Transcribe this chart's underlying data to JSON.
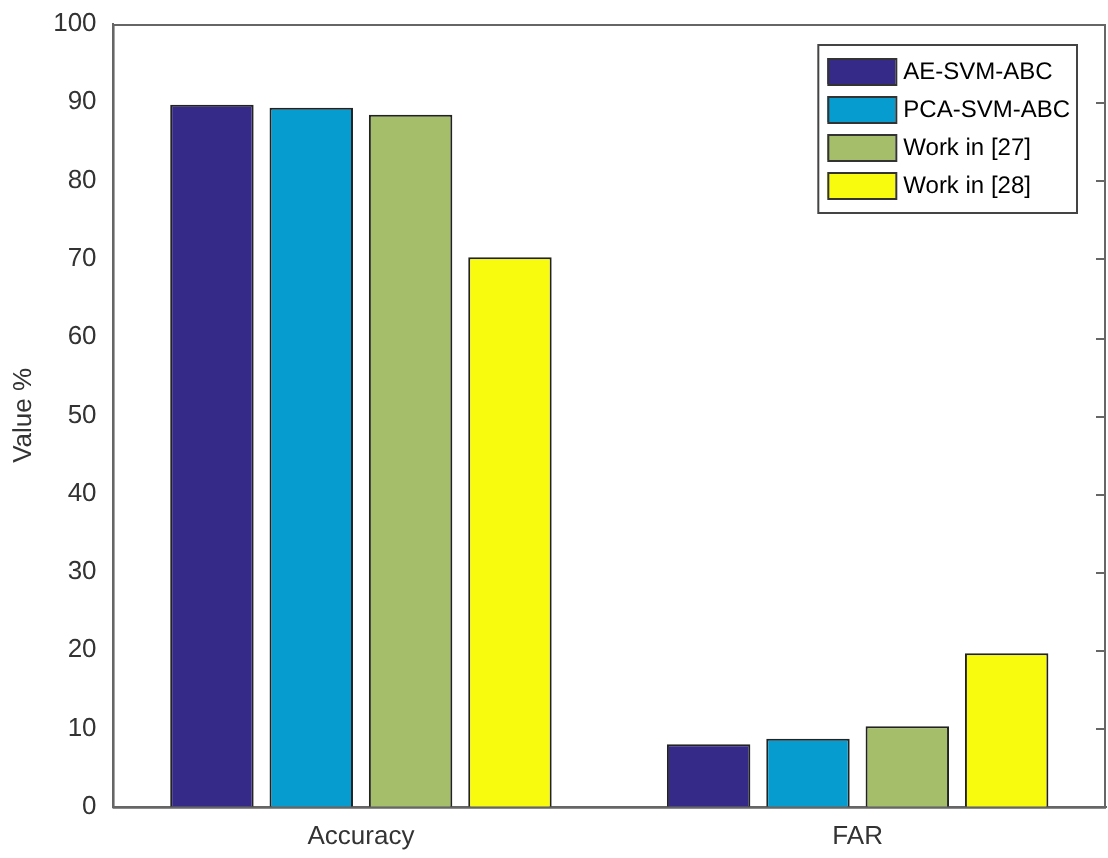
{
  "chart_data": {
    "type": "bar",
    "ylabel": "Value %",
    "categories": [
      "Accuracy",
      "FAR"
    ],
    "series": [
      {
        "name": "AE-SVM-ABC",
        "color": "#352a87",
        "values": [
          89.7,
          8.0
        ]
      },
      {
        "name": "PCA-SVM-ABC",
        "color": "#079ccf",
        "values": [
          89.3,
          8.7
        ]
      },
      {
        "name": "Work in [27]",
        "color": "#a5be6a",
        "values": [
          88.4,
          10.3
        ]
      },
      {
        "name": "Work in [28]",
        "color": "#f9fb0e",
        "values": [
          70.2,
          19.6
        ]
      }
    ],
    "ylim": [
      0,
      100
    ],
    "yticks": [
      0,
      10,
      20,
      30,
      40,
      50,
      60,
      70,
      80,
      90,
      100
    ],
    "grid": false,
    "legend": "top right"
  }
}
